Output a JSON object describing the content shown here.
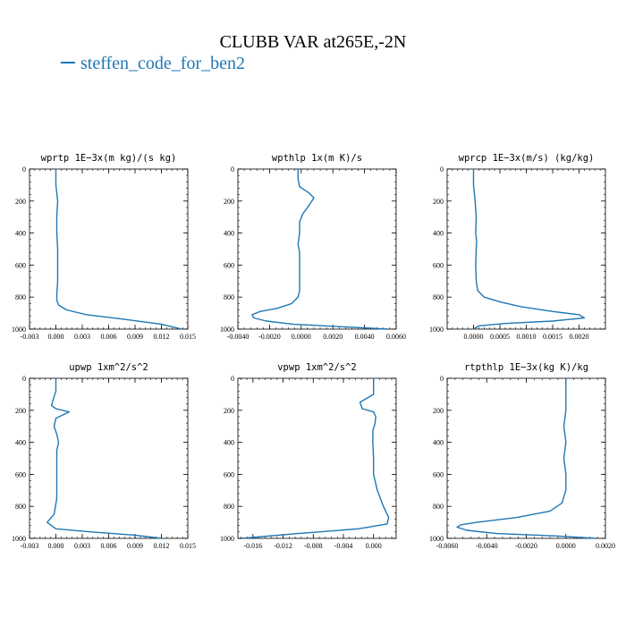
{
  "figure": {
    "title": "CLUBB VAR at265E,-2N",
    "legend": "steffen_code_for_ben2",
    "line_color": "#1f77b4"
  },
  "chart_data": [
    {
      "type": "line",
      "title": "wprtp  1E−3x(m kg)/(s kg)",
      "xlim": [
        -0.003,
        0.015
      ],
      "ylim": [
        1000,
        0
      ],
      "xticks": [
        -0.003,
        0.0,
        0.003,
        0.006,
        0.009,
        0.012,
        0.015
      ],
      "xtick_labels": [
        "-0.003",
        "0.000",
        "0.003",
        "0.006",
        "0.009",
        "0.012",
        "0.015"
      ],
      "yticks": [
        0,
        200,
        400,
        600,
        800,
        1000
      ],
      "series": [
        {
          "x": [
            0.0,
            0.0,
            0.0002,
            0.0001,
            0.0001,
            0.0002,
            0.0002,
            0.0002,
            0.0001,
            0.0001,
            0.0003,
            0.0012,
            0.0035,
            0.008,
            0.012,
            0.0143
          ],
          "y": [
            0,
            100,
            200,
            300,
            400,
            500,
            600,
            700,
            780,
            820,
            850,
            880,
            910,
            940,
            970,
            1000
          ]
        }
      ]
    },
    {
      "type": "line",
      "title": "wpthlp  1x(m K)/s",
      "xlim": [
        -0.004,
        0.006
      ],
      "ylim": [
        1000,
        0
      ],
      "xticks": [
        -0.004,
        -0.002,
        0.0,
        0.002,
        0.004,
        0.006
      ],
      "xtick_labels": [
        "-0.0040",
        "-0.0020",
        "0.0000",
        "0.0020",
        "0.0040",
        "0.0060"
      ],
      "yticks": [
        0,
        200,
        400,
        600,
        800,
        1000
      ],
      "series": [
        {
          "x": [
            -0.0002,
            -0.0002,
            -0.0001,
            0.0005,
            0.0008,
            0.0004,
            0.0001,
            -0.0001,
            -0.0001,
            -0.0002,
            -0.0001,
            -0.0001,
            -0.0001,
            -0.0001,
            -0.0002,
            -0.0006,
            -0.0015,
            -0.0026,
            -0.0031,
            -0.003,
            -0.0022,
            -0.0005,
            0.0025,
            0.0055
          ],
          "y": [
            0,
            60,
            110,
            150,
            180,
            240,
            280,
            330,
            400,
            470,
            520,
            600,
            700,
            760,
            800,
            840,
            870,
            890,
            910,
            930,
            950,
            970,
            985,
            1000
          ]
        }
      ]
    },
    {
      "type": "line",
      "title": "wprcp  1E−3x(m/s) (kg/kg)",
      "xlim": [
        -0.0005,
        0.0025
      ],
      "ylim": [
        1000,
        0
      ],
      "xticks": [
        0.0,
        0.0005,
        0.001,
        0.0015,
        0.002
      ],
      "xtick_labels": [
        "0.0000",
        "0.0005",
        "0.0010",
        "0.0015",
        "0.0020"
      ],
      "yticks": [
        0,
        200,
        400,
        600,
        800,
        1000
      ],
      "series": [
        {
          "x": [
            0.0,
            0.0,
            3e-05,
            5e-05,
            4e-05,
            6e-05,
            5e-05,
            4e-05,
            5e-05,
            8e-05,
            0.0002,
            0.0005,
            0.0009,
            0.0015,
            0.002,
            0.0021,
            0.0015,
            0.0006,
            0.0001,
            0.0
          ],
          "y": [
            0,
            100,
            200,
            300,
            400,
            450,
            500,
            600,
            700,
            760,
            800,
            830,
            860,
            890,
            910,
            930,
            950,
            965,
            980,
            1000
          ]
        }
      ]
    },
    {
      "type": "line",
      "title": "upwp  1xm^2/s^2",
      "xlim": [
        -0.003,
        0.015
      ],
      "ylim": [
        1000,
        0
      ],
      "xticks": [
        -0.003,
        0.0,
        0.003,
        0.006,
        0.009,
        0.012,
        0.015
      ],
      "xtick_labels": [
        "-0.003",
        "0.000",
        "0.003",
        "0.006",
        "0.009",
        "0.012",
        "0.015"
      ],
      "yticks": [
        0,
        200,
        400,
        600,
        800,
        1000
      ],
      "series": [
        {
          "x": [
            0.0,
            0.0,
            -0.0003,
            -0.0005,
            0.0,
            0.0015,
            0.0,
            -0.0002,
            0.0001,
            0.0003,
            0.0001,
            0.0001,
            0.0001,
            0.0001,
            -0.0002,
            -0.001,
            0.0,
            0.004,
            0.009,
            0.012
          ],
          "y": [
            0,
            80,
            130,
            170,
            190,
            210,
            250,
            300,
            350,
            400,
            450,
            500,
            600,
            750,
            850,
            900,
            940,
            960,
            980,
            1000
          ]
        }
      ]
    },
    {
      "type": "line",
      "title": "vpwp  1xm^2/s^2",
      "xlim": [
        -0.018,
        0.003
      ],
      "ylim": [
        1000,
        0
      ],
      "xticks": [
        -0.016,
        -0.012,
        -0.008,
        -0.004,
        0.0
      ],
      "xtick_labels": [
        "-0.016",
        "-0.012",
        "-0.008",
        "-0.004",
        "0.000"
      ],
      "yticks": [
        0,
        200,
        400,
        600,
        800,
        1000
      ],
      "series": [
        {
          "x": [
            0.0,
            0.0,
            -0.0018,
            -0.0015,
            0.0,
            0.0003,
            0.0002,
            -0.0001,
            -0.0001,
            0.0,
            0.0,
            0.0005,
            0.0013,
            0.002,
            0.0018,
            -0.002,
            -0.01,
            -0.0175
          ],
          "y": [
            0,
            100,
            150,
            190,
            210,
            240,
            280,
            330,
            400,
            500,
            600,
            700,
            800,
            870,
            910,
            940,
            970,
            1000
          ]
        }
      ]
    },
    {
      "type": "line",
      "title": "rtpthlp  1E−3x(kg K)/kg",
      "xlim": [
        -0.006,
        0.002
      ],
      "ylim": [
        1000,
        0
      ],
      "xticks": [
        -0.006,
        -0.004,
        -0.002,
        0.0,
        0.002
      ],
      "xtick_labels": [
        "-0.0060",
        "-0.0040",
        "-0.0020",
        "0.0000",
        "0.0020"
      ],
      "yticks": [
        0,
        200,
        400,
        600,
        800,
        1000
      ],
      "series": [
        {
          "x": [
            0.0,
            0.0,
            0.0,
            -0.0001,
            0.0,
            -0.0001,
            0.0,
            0.0,
            -0.0002,
            -0.0008,
            -0.0025,
            -0.0045,
            -0.0053,
            -0.0055,
            -0.005,
            -0.0035,
            -0.0005,
            0.0015
          ],
          "y": [
            0,
            100,
            200,
            300,
            400,
            500,
            600,
            700,
            780,
            830,
            870,
            900,
            915,
            930,
            950,
            970,
            985,
            1000
          ]
        }
      ]
    }
  ]
}
